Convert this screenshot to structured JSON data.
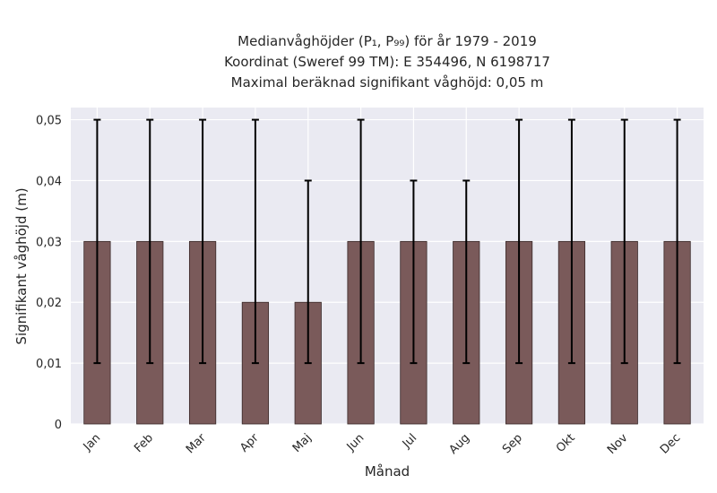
{
  "chart_data": {
    "type": "bar",
    "title_lines": [
      "Medianvåghöjder (P₁, P₉₉) för år 1979 - 2019",
      "Koordinat (Sweref 99 TM): E 354496, N 6198717",
      "Maximal beräknad signifikant våghöjd: 0,05 m"
    ],
    "xlabel": "Månad",
    "ylabel": "Signifikant våghöjd (m)",
    "categories": [
      "Jan",
      "Feb",
      "Mar",
      "Apr",
      "Maj",
      "Jun",
      "Jul",
      "Aug",
      "Sep",
      "Okt",
      "Nov",
      "Dec"
    ],
    "values": [
      0.03,
      0.03,
      0.03,
      0.02,
      0.02,
      0.03,
      0.03,
      0.03,
      0.03,
      0.03,
      0.03,
      0.03
    ],
    "error_low": [
      0.01,
      0.01,
      0.01,
      0.01,
      0.01,
      0.01,
      0.01,
      0.01,
      0.01,
      0.01,
      0.01,
      0.01
    ],
    "error_high": [
      0.05,
      0.05,
      0.05,
      0.05,
      0.04,
      0.05,
      0.04,
      0.04,
      0.05,
      0.05,
      0.05,
      0.05
    ],
    "ylim": [
      0,
      0.052
    ],
    "yticks": [
      0,
      0.01,
      0.02,
      0.03,
      0.04,
      0.05
    ],
    "ytick_labels": [
      "0",
      "0,01",
      "0,02",
      "0,03",
      "0,04",
      "0,05"
    ],
    "grid": true,
    "colors": {
      "bar": "#7a5a5a",
      "bar_edge": "#3a2a2a",
      "error": "#000000",
      "plot_bg": "#eaeaf2",
      "grid": "#ffffff"
    }
  }
}
